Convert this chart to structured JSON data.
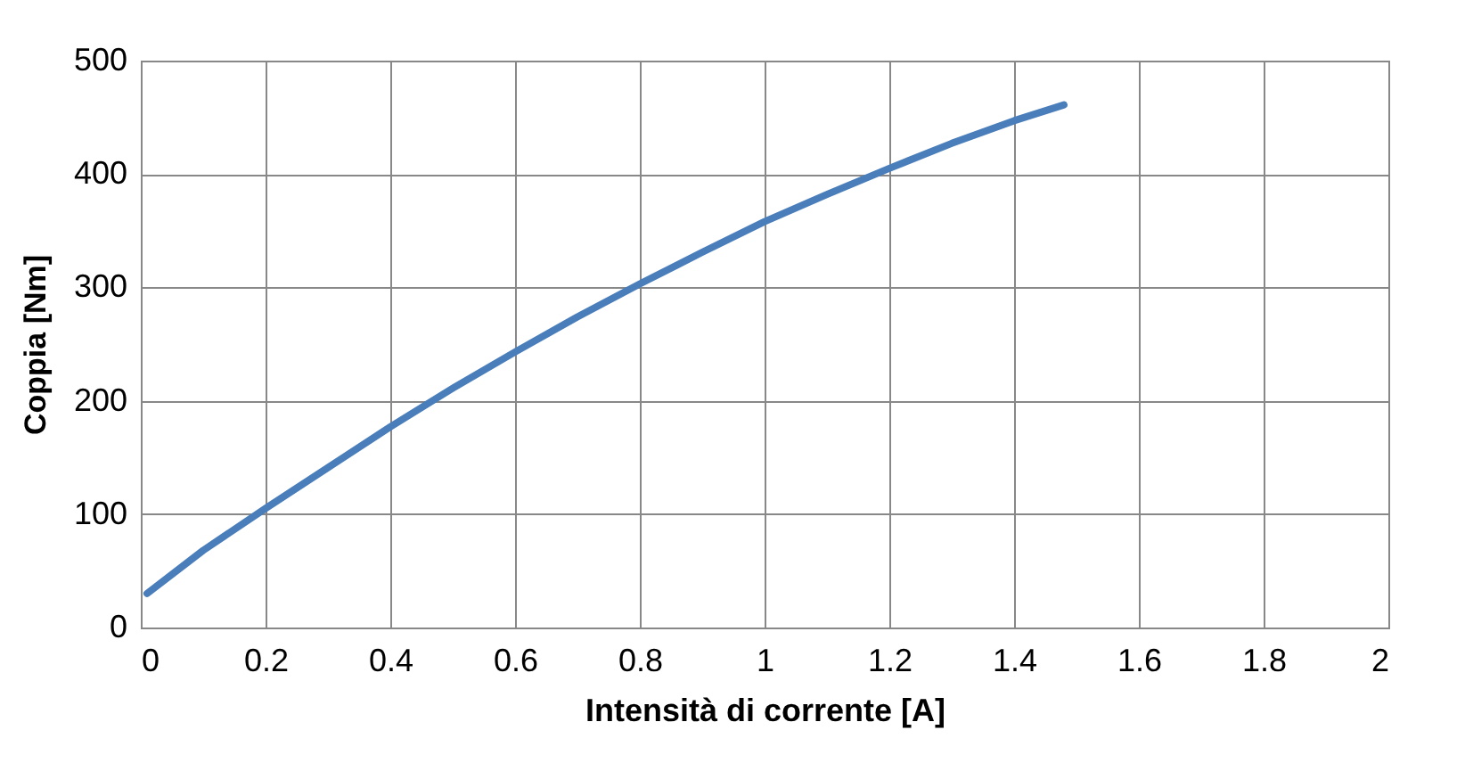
{
  "chart_data": {
    "type": "line",
    "xlabel": "Intensità di corrente [A]",
    "ylabel": "Coppia [Nm]",
    "x": [
      0.01,
      0.1,
      0.2,
      0.3,
      0.4,
      0.5,
      0.6,
      0.7,
      0.8,
      0.9,
      1.0,
      1.1,
      1.2,
      1.3,
      1.4,
      1.48
    ],
    "series": [
      {
        "color": "#4a7ebb",
        "values": [
          30,
          68,
          105,
          141,
          177,
          211,
          243,
          274,
          303,
          331,
          358,
          382,
          405,
          427,
          447,
          461
        ]
      }
    ],
    "xlim": [
      0,
      2
    ],
    "xticks": [
      0,
      0.2,
      0.4,
      0.6,
      0.8,
      1,
      1.2,
      1.4,
      1.6,
      1.8,
      2
    ],
    "ylim": [
      0,
      500
    ],
    "yticks": [
      0,
      100,
      200,
      300,
      400,
      500
    ],
    "grid": true,
    "marker": "none",
    "line_style": "solid"
  }
}
